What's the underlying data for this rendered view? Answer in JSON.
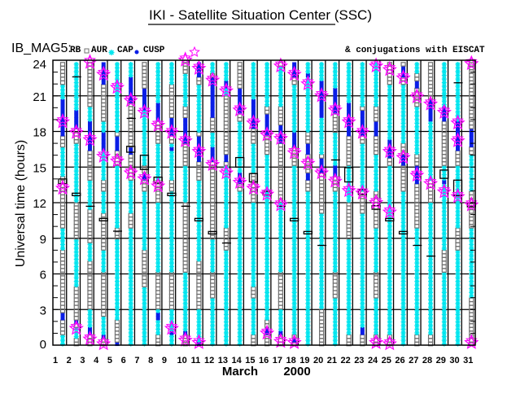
{
  "title": "IKI - Satellite Situation Center (SSC)",
  "legend": {
    "prefix": "IB_MAG5:",
    "items": [
      {
        "label": "RB",
        "marker": "square",
        "color": "#707070"
      },
      {
        "label": "AUR",
        "marker": "asterisk",
        "color": "#00e5ee"
      },
      {
        "label": "CAP",
        "marker": "dot",
        "color": "#0a1ee6"
      },
      {
        "label": "CUSP",
        "marker": "star",
        "color": "#ff00ff"
      }
    ],
    "conjugations": "& conjugations with EISCAT"
  },
  "chart_data": {
    "type": "scatter",
    "title": "IKI - Satellite Situation Center (SSC)",
    "xlabel": "March",
    "xlabel_year": "2000",
    "ylabel": "Universal time (hours)",
    "ylim": [
      0,
      24
    ],
    "yticks": [
      "0",
      "3",
      "6",
      "9",
      "12",
      "15",
      "18",
      "21",
      "24"
    ],
    "xticks": [
      "1",
      "2",
      "3",
      "4",
      "5",
      "6",
      "7",
      "8",
      "9",
      "10",
      "11",
      "12",
      "13",
      "14",
      "15",
      "16",
      "17",
      "18",
      "19",
      "20",
      "21",
      "22",
      "23",
      "24",
      "25",
      "26",
      "27",
      "28",
      "29",
      "30",
      "31"
    ],
    "grid": true,
    "days": [
      {
        "cusp": [
          18.8,
          13.2
        ],
        "cap": [
          [
            17.6,
            20.7
          ],
          [
            2,
            2.8
          ]
        ],
        "aur": [
          [
            20.8,
            21.8
          ],
          [
            14.2,
            16.7
          ],
          [
            8,
            10
          ],
          [
            0,
            0.8
          ]
        ],
        "eiscat": [
          {
            "h": 13.8,
            "span": 0.4
          }
        ]
      },
      {
        "cusp": [
          17.9,
          1.4
        ],
        "cap": [
          [
            18.2,
            19.8
          ],
          [
            1.9,
            2.1
          ]
        ],
        "aur": [
          [
            19,
            24
          ],
          [
            12,
            17
          ],
          [
            5,
            9
          ],
          [
            0.5,
            1.5
          ]
        ],
        "eiscat": [
          {
            "h": 12.7,
            "span": 0.2
          },
          {
            "h": 22.6,
            "span": 0
          }
        ]
      },
      {
        "cusp": [
          23.8,
          17.3,
          0.5
        ],
        "cap": [
          [
            16.5,
            19
          ],
          [
            1,
            1.5
          ]
        ],
        "aur": [
          [
            17,
            20
          ],
          [
            11.5,
            14
          ],
          [
            7,
            8.5
          ],
          [
            1.5,
            3
          ]
        ],
        "eiscat": [
          {
            "h": 11.7,
            "span": 0
          }
        ]
      },
      {
        "cusp": [
          22.8,
          15.9,
          0.1
        ],
        "cap": [
          [
            22,
            24
          ],
          [
            16.5,
            18
          ],
          [
            0.5,
            1
          ]
        ],
        "aur": [
          [
            14,
            19
          ],
          [
            11,
            13
          ],
          [
            6,
            8
          ],
          [
            1,
            2.5
          ]
        ],
        "eiscat": [
          {
            "h": 10.6,
            "span": 0.15
          }
        ]
      },
      {
        "cusp": [
          21.7,
          15.5
        ],
        "cap": [
          [
            16.5,
            17.5
          ],
          [
            0,
            0.3
          ]
        ],
        "aur": [
          [
            18,
            24
          ],
          [
            10,
            15
          ],
          [
            2,
            9
          ]
        ],
        "eiscat": [
          {
            "h": 9.6,
            "span": 0
          }
        ]
      },
      {
        "cusp": [
          20.6,
          14.5
        ],
        "cap": [
          [
            20.5,
            22.5
          ],
          [
            16,
            16.8
          ]
        ],
        "aur": [
          [
            22,
            24
          ],
          [
            11,
            14
          ],
          [
            0,
            10
          ]
        ],
        "eiscat": [
          {
            "h": 19.1,
            "span": 0
          },
          {
            "h": 16.5,
            "span": 0.5
          }
        ]
      },
      {
        "cusp": [
          19.6,
          14.0
        ],
        "cap": [
          [
            19.8,
            21.5
          ],
          [
            13.9,
            14.6
          ]
        ],
        "aur": [
          [
            15,
            20
          ],
          [
            8,
            13
          ],
          [
            0,
            5
          ]
        ],
        "eiscat": [
          {
            "h": 15.4,
            "span": 1.2
          }
        ]
      },
      {
        "cusp": [
          18.5,
          13.4
        ],
        "cap": [
          [
            19,
            20.5
          ],
          [
            2,
            2.6
          ]
        ],
        "aur": [
          [
            20,
            24
          ],
          [
            14,
            17
          ],
          [
            6,
            12
          ],
          [
            1,
            3
          ]
        ],
        "eiscat": [
          {
            "h": 13.9,
            "span": 0.5
          }
        ]
      },
      {
        "cusp": [
          17.9,
          1.4
        ],
        "cap": [
          [
            17.5,
            19.2
          ],
          [
            16.3,
            16.6
          ],
          [
            1,
            1.2
          ]
        ],
        "aur": [
          [
            22,
            24
          ],
          [
            14,
            17
          ],
          [
            6,
            13
          ],
          [
            0,
            3
          ]
        ],
        "eiscat": [
          {
            "h": 12.7,
            "span": 0.2
          }
        ]
      },
      {
        "cusp": [
          24,
          17.2,
          0.4
        ],
        "cap": [
          [
            17,
            19.2
          ],
          [
            0.8,
            1.2
          ]
        ],
        "aur": [
          [
            20,
            23
          ],
          [
            12,
            15
          ],
          [
            1,
            6
          ]
        ],
        "eiscat": [
          {
            "h": 11.7,
            "span": 0
          }
        ]
      },
      {
        "cusp": [
          23.3,
          16.3,
          0.2
        ],
        "cap": [
          [
            22.5,
            24
          ],
          [
            15.4,
            17.5
          ],
          [
            0.1,
            0.4
          ]
        ],
        "aur": [
          [
            18,
            22
          ],
          [
            7,
            14
          ],
          [
            0,
            3
          ]
        ],
        "eiscat": [
          {
            "h": 10.6,
            "span": 0.15
          }
        ]
      },
      {
        "cusp": [
          22.3,
          15.2
        ],
        "cap": [
          [
            19.3,
            22.5
          ],
          [
            15.5,
            16.8
          ]
        ],
        "aur": [
          [
            23,
            24
          ],
          [
            16,
            18
          ],
          [
            6,
            9
          ],
          [
            0,
            4
          ]
        ],
        "eiscat": [
          {
            "h": 9.5,
            "span": 0.15
          }
        ]
      },
      {
        "cusp": [
          21.4,
          14.5
        ],
        "cap": [
          [
            21.5,
            22.3
          ],
          [
            15.3,
            16
          ]
        ],
        "aur": [
          [
            21,
            24
          ],
          [
            10,
            15
          ],
          [
            0,
            8
          ]
        ],
        "eiscat": [
          {
            "h": 8.6,
            "span": 0
          }
        ]
      },
      {
        "cusp": [
          19.8,
          13.7
        ],
        "cap": [
          [
            19.5,
            21.5
          ],
          [
            13.7,
            14.5
          ]
        ],
        "aur": [
          [
            14,
            19
          ],
          [
            0,
            13
          ]
        ],
        "eiscat": [
          {
            "h": 15.4,
            "span": 0.8
          }
        ]
      },
      {
        "cusp": [
          18.7,
          13.2
        ],
        "cap": [
          [
            18.3,
            20.7
          ]
        ],
        "aur": [
          [
            19.5,
            24
          ],
          [
            14.5,
            17
          ],
          [
            5,
            12
          ],
          [
            1,
            4
          ]
        ],
        "eiscat": [
          {
            "h": 14.1,
            "span": 0.7
          }
        ]
      },
      {
        "cusp": [
          17.7,
          12.7,
          1.0
        ],
        "cap": [
          [
            17.7,
            19.5
          ],
          [
            1,
            1.5
          ]
        ],
        "aur": [
          [
            20,
            24
          ],
          [
            12,
            16
          ],
          [
            2,
            12
          ]
        ],
        "eiscat": [
          {
            "h": 12.8,
            "span": 0.3
          }
        ]
      },
      {
        "cusp": [
          23.5,
          17.4,
          11.8,
          0.3
        ],
        "cap": [
          [
            17,
            18.6
          ],
          [
            16,
            16.2
          ],
          [
            1,
            1.2
          ]
        ],
        "aur": [
          [
            20,
            23.5
          ],
          [
            6,
            12
          ],
          [
            1,
            3
          ]
        ],
        "eiscat": [
          {
            "h": 11.7,
            "span": 0
          }
        ]
      },
      {
        "cusp": [
          22.8,
          16.2,
          0.2
        ],
        "cap": [
          [
            22.5,
            23.7
          ],
          [
            16.6,
            17.8
          ],
          [
            0.3,
            0.5
          ]
        ],
        "aur": [
          [
            17,
            22
          ],
          [
            1,
            15
          ]
        ],
        "eiscat": [
          {
            "h": 10.6,
            "span": 0.15
          }
        ]
      },
      {
        "cusp": [
          22,
          15.3
        ],
        "cap": [
          [
            22.5,
            23
          ],
          [
            16,
            17
          ],
          [
            14,
            14.5
          ]
        ],
        "aur": [
          [
            18,
            24
          ],
          [
            0,
            13
          ]
        ],
        "eiscat": [
          {
            "h": 9.5,
            "span": 0.15
          }
        ]
      },
      {
        "cusp": [
          21,
          14.5
        ],
        "cap": [
          [
            19.3,
            22.3
          ],
          [
            14.5,
            15.8
          ]
        ],
        "aur": [
          [
            22,
            24
          ],
          [
            16,
            20
          ],
          [
            3,
            11
          ]
        ],
        "eiscat": [
          {
            "h": 8.4,
            "span": 0
          }
        ]
      },
      {
        "cusp": [
          19.8,
          13.8
        ],
        "cap": [
          [
            19.5,
            21.5
          ],
          [
            14.2,
            15
          ]
        ],
        "aur": [
          [
            21,
            24
          ],
          [
            15,
            18
          ],
          [
            6,
            13
          ],
          [
            0,
            4
          ]
        ],
        "eiscat": [
          {
            "h": 15.6,
            "span": 0
          }
        ]
      },
      {
        "cusp": [
          18.8,
          13
        ],
        "cap": [
          [
            17.5,
            20.5
          ]
        ],
        "aur": [
          [
            20,
            24
          ],
          [
            12,
            15
          ],
          [
            1,
            9
          ]
        ],
        "eiscat": [
          {
            "h": 14.35,
            "span": 1.2
          }
        ]
      },
      {
        "cusp": [
          17.9,
          12.8
        ],
        "cap": [
          [
            17.5,
            19.8
          ],
          [
            1,
            1.4
          ]
        ],
        "aur": [
          [
            20,
            24
          ],
          [
            13,
            17
          ],
          [
            1,
            11
          ]
        ],
        "eiscat": [
          {
            "h": 12.9,
            "span": 0.4
          }
        ]
      },
      {
        "cusp": [
          23.5,
          12,
          0.2
        ],
        "cap": [
          [
            17.5,
            18.7
          ]
        ],
        "aur": [
          [
            20,
            24
          ],
          [
            13,
            16
          ],
          [
            6,
            10
          ],
          [
            1,
            4
          ]
        ],
        "eiscat": [
          {
            "h": 11.6,
            "span": 0.3
          }
        ]
      },
      {
        "cusp": [
          23.2,
          16.3,
          11.2,
          0.1
        ],
        "cap": [
          [
            15.8,
            17.4
          ]
        ],
        "aur": [
          [
            17,
            22
          ],
          [
            1,
            15
          ]
        ],
        "eiscat": [
          {
            "h": 10.6,
            "span": 0.15
          }
        ]
      },
      {
        "cusp": [
          22.5,
          15.8
        ],
        "cap": [
          [
            22.5,
            23.5
          ],
          [
            15.2,
            16.2
          ]
        ],
        "aur": [
          [
            17,
            22
          ],
          [
            0,
            13
          ]
        ],
        "eiscat": [
          {
            "h": 9.5,
            "span": 0.15
          }
        ]
      },
      {
        "cusp": [
          20.9,
          14.3
        ],
        "cap": [
          [
            21.5,
            22.3
          ],
          [
            13.6,
            15.2
          ]
        ],
        "aur": [
          [
            23,
            24
          ],
          [
            16,
            20
          ],
          [
            1,
            10
          ]
        ],
        "eiscat": [
          {
            "h": 8.4,
            "span": 0
          }
        ]
      },
      {
        "cusp": [
          20.3,
          13.6
        ],
        "cap": [
          [
            18.8,
            20.8
          ]
        ],
        "aur": [
          [
            14,
            19
          ],
          [
            1,
            12
          ]
        ],
        "eiscat": [
          {
            "h": 7.5,
            "span": 0
          }
        ]
      },
      {
        "cusp": [
          19.6,
          12.9
        ],
        "cap": [
          [
            18.9,
            20
          ],
          [
            13.7,
            14
          ]
        ],
        "aur": [
          [
            20,
            24
          ],
          [
            8,
            15
          ],
          [
            0,
            6
          ]
        ],
        "eiscat": [
          {
            "h": 14.4,
            "span": 0.7
          }
        ]
      },
      {
        "cusp": [
          18.7,
          17.2,
          12.5
        ],
        "cap": [
          [
            16.3,
            19
          ]
        ],
        "aur": [
          [
            19,
            24
          ],
          [
            10,
            15
          ],
          [
            0,
            8
          ]
        ],
        "eiscat": [
          {
            "h": 13.25,
            "span": 1.3
          },
          {
            "h": 22.1,
            "span": 0
          }
        ]
      },
      {
        "cusp": [
          23.7,
          11.8,
          0.2
        ],
        "cap": [
          [
            16.8,
            18.3
          ]
        ],
        "aur": [
          [
            13,
            16
          ],
          [
            4,
            10
          ]
        ],
        "eiscat": [
          {
            "h": 11.8,
            "span": 0.3
          }
        ]
      }
    ]
  }
}
